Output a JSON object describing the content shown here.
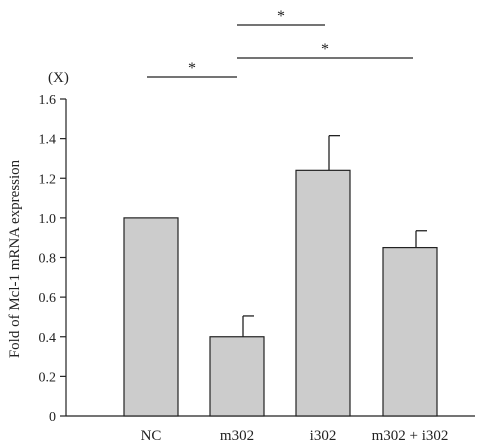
{
  "chart_data": {
    "type": "bar",
    "unit_label": "(X)",
    "ylabel": "Fold of Mcl-1 mRNA expression",
    "xlabel": "",
    "ylim": [
      0,
      1.6
    ],
    "yticks": [
      0,
      0.2,
      0.4,
      0.6,
      0.8,
      1.0,
      1.2,
      1.4,
      1.6
    ],
    "ytick_labels": [
      "0",
      "0.2",
      "0.4",
      "0.6",
      "0.8",
      "1.0",
      "1.2",
      "1.4",
      "1.6"
    ],
    "categories": [
      "NC",
      "m302",
      "i302",
      "m302 + i302"
    ],
    "values": [
      1.0,
      0.4,
      1.24,
      0.85
    ],
    "errors": [
      0,
      0.105,
      0.175,
      0.085
    ],
    "significance": [
      {
        "from": 0,
        "to": 1,
        "label": "*"
      },
      {
        "from": 1,
        "to": 2,
        "label": "*"
      },
      {
        "from": 1,
        "to": 3,
        "label": "*"
      }
    ],
    "colors": {
      "bar_fill": "#cccccc",
      "bar_stroke": "#222222",
      "axis": "#222222"
    },
    "grid": false,
    "legend": "none"
  }
}
